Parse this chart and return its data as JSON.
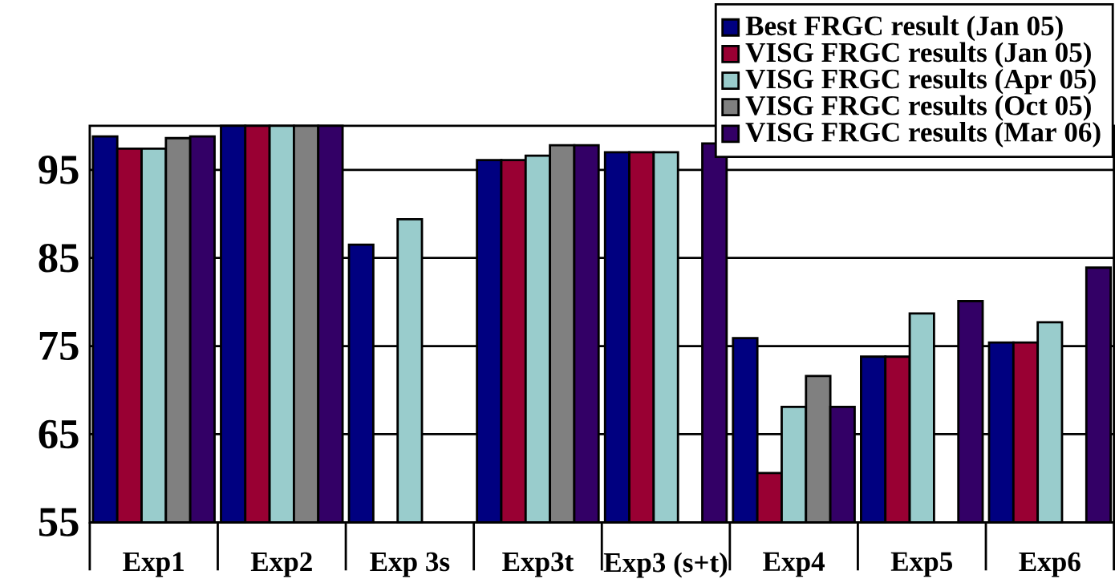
{
  "chart_data": {
    "type": "bar",
    "categories": [
      "Exp1",
      "Exp2",
      "Exp 3s",
      "Exp3t",
      "Exp3 (s+t)",
      "Exp4",
      "Exp5",
      "Exp6"
    ],
    "series": [
      {
        "name": "Best FRGC result (Jan 05)",
        "color": "#000080",
        "values": [
          98.8,
          100,
          86.5,
          96.1,
          97.0,
          75.9,
          73.8,
          75.4
        ]
      },
      {
        "name": "VISG FRGC results (Jan 05)",
        "color": "#990033",
        "values": [
          97.4,
          100,
          null,
          96.1,
          97.0,
          60.6,
          73.8,
          75.4
        ]
      },
      {
        "name": "VISG FRGC results (Apr 05)",
        "color": "#99cccc",
        "values": [
          97.4,
          100,
          89.4,
          96.6,
          97.0,
          68.1,
          78.7,
          77.7
        ]
      },
      {
        "name": "VISG FRGC results (Oct 05)",
        "color": "#808080",
        "values": [
          98.6,
          100,
          null,
          97.8,
          null,
          71.6,
          null,
          null
        ]
      },
      {
        "name": "VISG FRGC results (Mar 06)",
        "color": "#330066",
        "values": [
          98.8,
          100,
          null,
          97.8,
          98.0,
          68.1,
          80.1,
          83.9
        ]
      }
    ],
    "ylim": [
      55,
      100
    ],
    "yticks": [
      55,
      65,
      75,
      85,
      95
    ],
    "grid": "y",
    "legend": "top right"
  }
}
